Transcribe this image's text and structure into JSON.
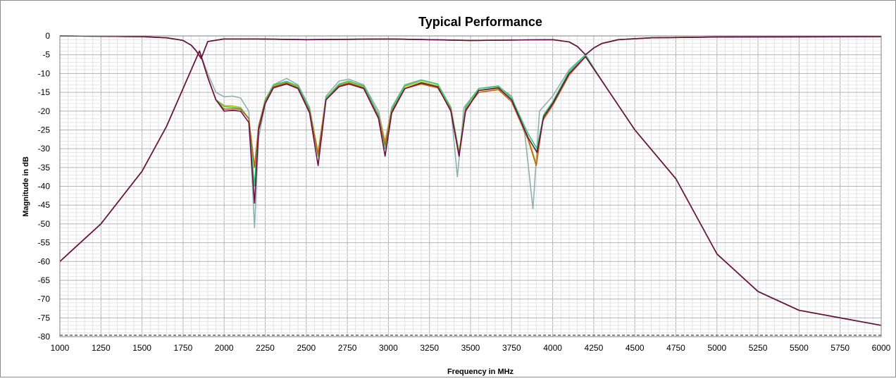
{
  "chart_data": {
    "type": "line",
    "title": "Typical Performance",
    "xlabel": "Frequency in MHz",
    "ylabel": "Magnitude in dB",
    "xlim": [
      1000,
      6000
    ],
    "ylim": [
      -80,
      0
    ],
    "x_ticks": [
      1000,
      1250,
      1500,
      1750,
      2000,
      2250,
      2500,
      2750,
      3000,
      3250,
      3500,
      3750,
      4000,
      4250,
      4500,
      4750,
      5000,
      5250,
      5500,
      5750,
      6000
    ],
    "y_ticks": [
      0,
      -5,
      -10,
      -15,
      -20,
      -25,
      -30,
      -35,
      -40,
      -45,
      -50,
      -55,
      -60,
      -65,
      -70,
      -75,
      -80
    ],
    "grid": true,
    "legend": "none",
    "series": [
      {
        "color": "#8fb0b0",
        "insertion_loss": {
          "x": [
            1000,
            1250,
            1500,
            1650,
            1750,
            1800,
            1830,
            1860,
            1900,
            2000,
            2200,
            2500,
            3000,
            3500,
            4000,
            4100,
            4150,
            4200,
            4250,
            4300,
            4400,
            4600,
            5000,
            6000
          ],
          "y": [
            0,
            -0.1,
            -0.2,
            -0.5,
            -1.2,
            -2.5,
            -4,
            -6,
            -1.5,
            -0.8,
            -0.8,
            -1,
            -0.8,
            -1.2,
            -1,
            -1.6,
            -2.8,
            -5,
            -3.2,
            -2,
            -1,
            -0.5,
            -0.3,
            -0.2
          ]
        },
        "return_loss": {
          "x": [
            1000,
            1100,
            1250,
            1500,
            1650,
            1750,
            1850,
            1900,
            1950,
            2000,
            2050,
            2100,
            2150,
            2185,
            2210,
            2250,
            2300,
            2380,
            2450,
            2520,
            2572,
            2620,
            2700,
            2760,
            2850,
            2940,
            2980,
            3020,
            3100,
            3200,
            3300,
            3380,
            3420,
            3460,
            3550,
            3670,
            3750,
            3830,
            3880,
            3920,
            4000,
            4100,
            4200,
            4300,
            4500,
            4750,
            5000,
            5250,
            5500,
            5750,
            6000
          ],
          "y": [
            -60,
            -56,
            -50,
            -36,
            -24,
            -14,
            -4,
            -10,
            -15,
            -16.2,
            -16,
            -16.5,
            -20,
            -51,
            -27,
            -18,
            -13,
            -11.3,
            -13,
            -19,
            -31,
            -16,
            -12,
            -11.5,
            -13,
            -20,
            -28,
            -19,
            -13,
            -11.7,
            -12.8,
            -19,
            -37.5,
            -19,
            -14,
            -13.5,
            -16,
            -26,
            -46,
            -20,
            -16,
            -9,
            -5,
            -12,
            -25,
            -38,
            -58,
            -68,
            -73,
            -75,
            -77
          ]
        }
      },
      {
        "color": "#d6c400",
        "insertion_loss": {
          "x": [
            1000,
            1250,
            1500,
            1650,
            1750,
            1800,
            1830,
            1860,
            1900,
            2000,
            2200,
            2500,
            3000,
            3500,
            4000,
            4100,
            4150,
            4200,
            4250,
            4300,
            4400,
            4600,
            5000,
            6000
          ],
          "y": [
            0,
            -0.1,
            -0.2,
            -0.5,
            -1.2,
            -2.5,
            -4,
            -6,
            -1.5,
            -0.8,
            -0.8,
            -1,
            -0.8,
            -1.2,
            -1,
            -1.6,
            -2.8,
            -5,
            -3.2,
            -2,
            -1,
            -0.5,
            -0.3,
            -0.2
          ]
        },
        "return_loss": {
          "x": [
            1000,
            1100,
            1250,
            1500,
            1650,
            1750,
            1850,
            1900,
            1950,
            2000,
            2050,
            2100,
            2150,
            2185,
            2210,
            2250,
            2300,
            2380,
            2450,
            2520,
            2572,
            2620,
            2700,
            2760,
            2850,
            2940,
            2980,
            3020,
            3100,
            3200,
            3300,
            3380,
            3430,
            3470,
            3550,
            3670,
            3750,
            3850,
            3900,
            3940,
            4000,
            4100,
            4200,
            4300,
            4500,
            4750,
            5000,
            5250,
            5500,
            5750,
            6000
          ],
          "y": [
            -60,
            -56,
            -50,
            -36,
            -24,
            -14,
            -4,
            -11,
            -17,
            -18.5,
            -18.6,
            -19,
            -22,
            -35,
            -24,
            -17,
            -13.2,
            -12.3,
            -13.5,
            -19.5,
            -31,
            -16.5,
            -13,
            -12.3,
            -13.5,
            -21,
            -28.5,
            -19.5,
            -13.5,
            -12.2,
            -13.2,
            -19,
            -31,
            -19,
            -14.5,
            -14,
            -17,
            -27,
            -34,
            -22,
            -18,
            -10,
            -5.5,
            -12,
            -25,
            -38,
            -58,
            -68,
            -73,
            -75,
            -77
          ]
        }
      },
      {
        "color": "#2ecc71",
        "insertion_loss": {
          "x": [
            1000,
            1250,
            1500,
            1650,
            1750,
            1800,
            1830,
            1860,
            1900,
            2000,
            2200,
            2500,
            3000,
            3500,
            4000,
            4100,
            4150,
            4200,
            4250,
            4300,
            4400,
            4600,
            5000,
            6000
          ],
          "y": [
            0,
            -0.1,
            -0.2,
            -0.5,
            -1.2,
            -2.5,
            -4,
            -6,
            -1.5,
            -0.8,
            -0.8,
            -1,
            -0.8,
            -1.2,
            -1,
            -1.6,
            -2.8,
            -5,
            -3.2,
            -2,
            -1,
            -0.5,
            -0.3,
            -0.2
          ]
        },
        "return_loss": {
          "x": [
            1000,
            1100,
            1250,
            1500,
            1650,
            1750,
            1850,
            1900,
            1950,
            2000,
            2050,
            2100,
            2150,
            2185,
            2210,
            2250,
            2300,
            2380,
            2450,
            2520,
            2572,
            2620,
            2700,
            2760,
            2850,
            2940,
            2980,
            3020,
            3100,
            3200,
            3300,
            3380,
            3430,
            3470,
            3550,
            3670,
            3750,
            3850,
            3905,
            3945,
            4000,
            4100,
            4200,
            4300,
            4500,
            4750,
            5000,
            5250,
            5500,
            5750,
            6000
          ],
          "y": [
            -60,
            -56,
            -50,
            -36,
            -24,
            -14,
            -4,
            -11,
            -17,
            -18.8,
            -19,
            -19.2,
            -22,
            -40,
            -24,
            -17,
            -13,
            -12.1,
            -13.3,
            -19.5,
            -32,
            -16.5,
            -12.8,
            -12,
            -13.3,
            -21,
            -30,
            -19.5,
            -13.2,
            -11.8,
            -12.8,
            -19,
            -31,
            -19,
            -14,
            -13.3,
            -16.5,
            -26,
            -30,
            -21,
            -17.5,
            -9.5,
            -5,
            -12,
            -25,
            -38,
            -58,
            -68,
            -73,
            -75,
            -77
          ]
        }
      },
      {
        "color": "#b5651d",
        "insertion_loss": {
          "x": [
            1000,
            1250,
            1500,
            1650,
            1750,
            1800,
            1830,
            1860,
            1900,
            2000,
            2200,
            2500,
            3000,
            3500,
            4000,
            4100,
            4150,
            4200,
            4250,
            4300,
            4400,
            4600,
            5000,
            6000
          ],
          "y": [
            0,
            -0.1,
            -0.2,
            -0.5,
            -1.2,
            -2.5,
            -4,
            -6,
            -1.5,
            -0.8,
            -0.8,
            -1,
            -0.8,
            -1.2,
            -1,
            -1.6,
            -2.8,
            -5,
            -3.2,
            -2,
            -1,
            -0.5,
            -0.3,
            -0.2
          ]
        },
        "return_loss": {
          "x": [
            1000,
            1100,
            1250,
            1500,
            1650,
            1750,
            1850,
            1900,
            1950,
            2000,
            2050,
            2100,
            2150,
            2185,
            2210,
            2250,
            2300,
            2380,
            2450,
            2520,
            2572,
            2620,
            2700,
            2760,
            2850,
            2940,
            2980,
            3020,
            3100,
            3200,
            3300,
            3380,
            3430,
            3470,
            3550,
            3670,
            3750,
            3850,
            3900,
            3940,
            4000,
            4100,
            4200,
            4300,
            4500,
            4750,
            5000,
            5250,
            5500,
            5750,
            6000
          ],
          "y": [
            -60,
            -56,
            -50,
            -36,
            -24,
            -14,
            -4,
            -11,
            -17,
            -19.5,
            -19.4,
            -19.5,
            -22,
            -35,
            -24,
            -17.5,
            -13.5,
            -12.5,
            -13.8,
            -20,
            -31.5,
            -17,
            -13.2,
            -12.5,
            -13.8,
            -21.5,
            -29,
            -20,
            -14,
            -12.8,
            -13.8,
            -19.5,
            -31.5,
            -19.5,
            -15,
            -14.3,
            -17.5,
            -27.5,
            -34.5,
            -22.5,
            -18.5,
            -10.5,
            -5.5,
            -12,
            -25,
            -38,
            -58,
            -68,
            -73,
            -75,
            -77
          ]
        }
      },
      {
        "color": "#6b0f4a",
        "insertion_loss": {
          "x": [
            1000,
            1250,
            1500,
            1650,
            1750,
            1800,
            1830,
            1860,
            1900,
            2000,
            2200,
            2500,
            3000,
            3500,
            4000,
            4100,
            4150,
            4200,
            4250,
            4300,
            4400,
            4600,
            5000,
            6000
          ],
          "y": [
            0,
            -0.1,
            -0.2,
            -0.5,
            -1.2,
            -2.5,
            -4,
            -6,
            -1.5,
            -0.8,
            -0.8,
            -1,
            -0.8,
            -1.2,
            -1,
            -1.6,
            -2.8,
            -5,
            -3.2,
            -2,
            -1,
            -0.5,
            -0.3,
            -0.2
          ]
        },
        "return_loss": {
          "x": [
            1000,
            1100,
            1250,
            1500,
            1650,
            1750,
            1850,
            1900,
            1950,
            2000,
            2050,
            2100,
            2150,
            2185,
            2210,
            2250,
            2300,
            2380,
            2450,
            2520,
            2572,
            2620,
            2700,
            2760,
            2850,
            2940,
            2980,
            3020,
            3100,
            3200,
            3300,
            3380,
            3430,
            3470,
            3550,
            3670,
            3750,
            3850,
            3905,
            3945,
            4000,
            4100,
            4200,
            4300,
            4500,
            4750,
            5000,
            5250,
            5500,
            5750,
            6000
          ],
          "y": [
            -60,
            -56,
            -50,
            -36,
            -24,
            -14,
            -4,
            -11,
            -17,
            -20,
            -19.8,
            -20,
            -23,
            -44.5,
            -25,
            -18,
            -13.8,
            -12.8,
            -14,
            -20.5,
            -34.5,
            -17,
            -13.5,
            -12.8,
            -14,
            -22,
            -32,
            -20.5,
            -14,
            -12.5,
            -13.5,
            -20,
            -32,
            -20,
            -14.5,
            -13.8,
            -17,
            -27,
            -31,
            -21.5,
            -18,
            -10,
            -5.5,
            -12,
            -25,
            -38,
            -58,
            -68,
            -73,
            -75,
            -77
          ]
        }
      }
    ]
  }
}
